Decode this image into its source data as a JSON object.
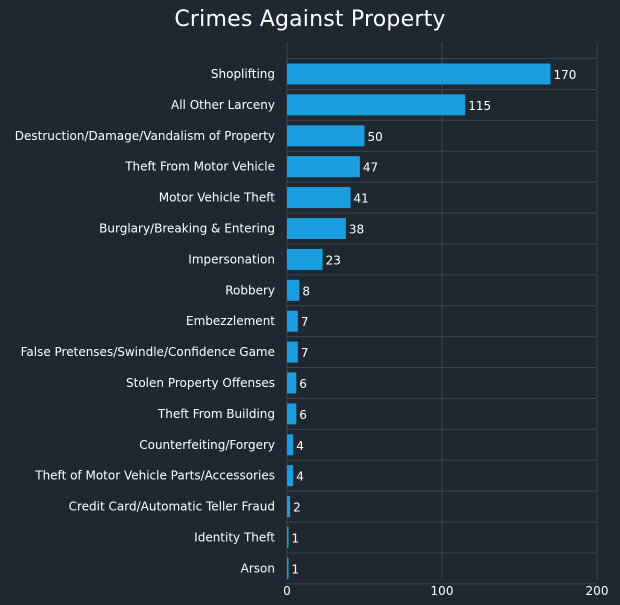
{
  "chart_data": {
    "type": "bar",
    "orientation": "horizontal",
    "title": "Crimes Against Property",
    "xlabel": "",
    "ylabel": "",
    "categories": [
      "Shoplifting",
      "All Other Larceny",
      "Destruction/Damage/Vandalism of Property",
      "Theft From Motor Vehicle",
      "Motor Vehicle Theft",
      "Burglary/Breaking & Entering",
      "Impersonation",
      "Robbery",
      "Embezzlement",
      "False Pretenses/Swindle/Confidence Game",
      "Stolen Property Offenses",
      "Theft From Building",
      "Counterfeiting/Forgery",
      "Theft of Motor Vehicle Parts/Accessories",
      "Credit Card/Automatic Teller Fraud",
      "Identity Theft",
      "Arson"
    ],
    "values": [
      170,
      115,
      50,
      47,
      41,
      38,
      23,
      8,
      7,
      7,
      6,
      6,
      4,
      4,
      2,
      1,
      1
    ],
    "xlim": [
      0,
      200
    ],
    "xticks": [
      0,
      100,
      200
    ],
    "grid": true,
    "data_labels": true,
    "colors": {
      "bar": "#1b9ee0",
      "background": "#1f2830",
      "grid": "#3a444d",
      "text": "#ffffff"
    }
  }
}
